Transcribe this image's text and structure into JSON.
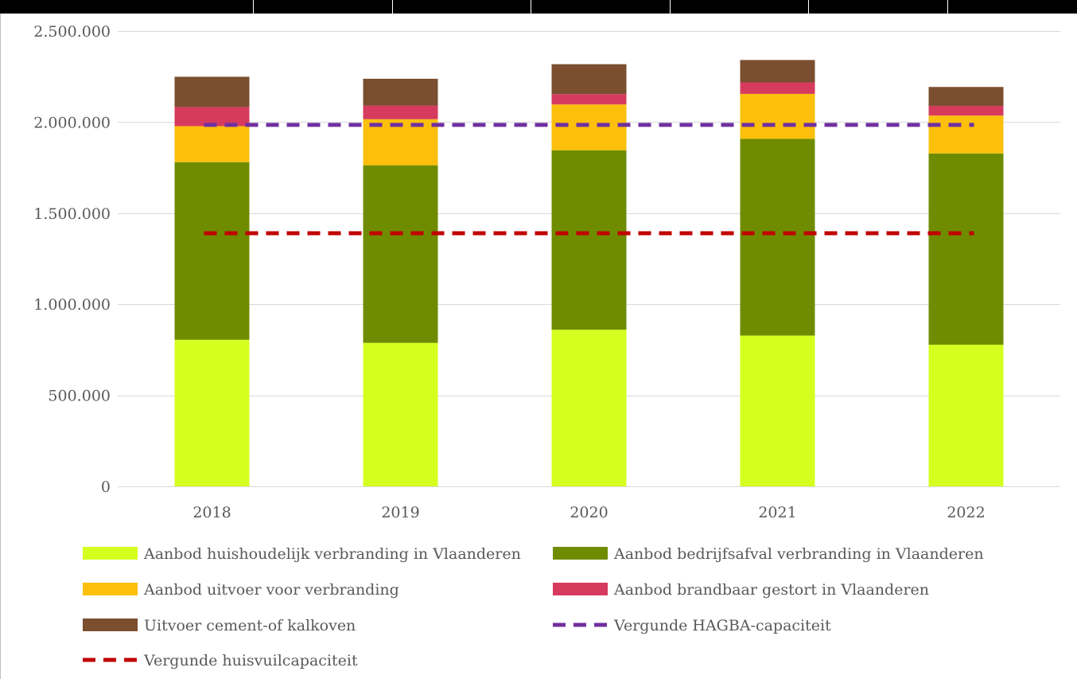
{
  "chart_data": {
    "type": "bar",
    "stacked": true,
    "categories": [
      "2018",
      "2019",
      "2020",
      "2021",
      "2022"
    ],
    "series": [
      {
        "name": "Aanbod huishoudelijk verbranding in Vlaanderen",
        "color": "#d4ff1f",
        "values": [
          805000,
          788000,
          860000,
          828000,
          778000
        ]
      },
      {
        "name": "Aanbod bedrijfsafval verbranding in Vlaanderen",
        "color": "#6f8c00",
        "values": [
          975000,
          975000,
          985000,
          1080000,
          1050000
        ]
      },
      {
        "name": "Aanbod uitvoer voor verbranding",
        "color": "#fbbf0c",
        "values": [
          198000,
          253000,
          252000,
          247000,
          208000
        ]
      },
      {
        "name": "Aanbod brandbaar gestort in Vlaanderen",
        "color": "#d63b5e",
        "values": [
          105000,
          75000,
          57000,
          63000,
          53000
        ]
      },
      {
        "name": "Uitvoer cement-of kalkoven",
        "color": "#7a4e2f",
        "values": [
          166000,
          147000,
          164000,
          123000,
          104000
        ]
      }
    ],
    "lines": [
      {
        "name": "Vergunde HAGBA-capaciteit",
        "color": "#7030a0",
        "style": "dashed",
        "value": 1985000
      },
      {
        "name": "Vergunde huisvuilcapaciteit",
        "color": "#c00000",
        "style": "dashed",
        "value": 1390000
      }
    ],
    "ylim": [
      0,
      2500000
    ],
    "yticks": [
      "0",
      "500.000",
      "1.000.000",
      "1.500.000",
      "2.000.000",
      "2.500.000"
    ],
    "ytick_values": [
      0,
      500000,
      1000000,
      1500000,
      2000000,
      2500000
    ],
    "grid": true,
    "legend_position": "bottom",
    "title": "",
    "xlabel": "",
    "ylabel": ""
  }
}
